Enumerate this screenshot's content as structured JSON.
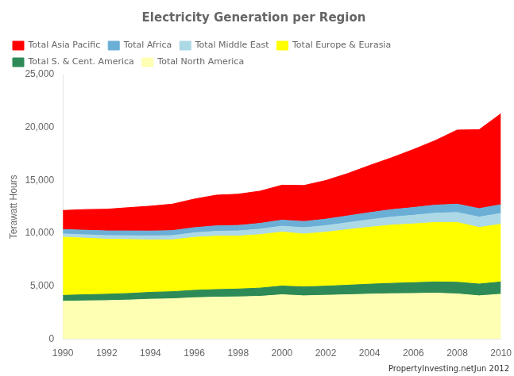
{
  "chart_data": {
    "type": "area",
    "title": "Electricity Generation per Region",
    "ylabel": "Terawatt Hours",
    "annotations": [
      "PropertyInvesting.netJun 2012"
    ],
    "x": [
      1990,
      1991,
      1992,
      1993,
      1994,
      1995,
      1996,
      1997,
      1998,
      1999,
      2000,
      2001,
      2002,
      2003,
      2004,
      2005,
      2006,
      2007,
      2008,
      2009,
      2010
    ],
    "xlim": [
      1990,
      2010
    ],
    "xticks": [
      1990,
      1992,
      1994,
      1996,
      1998,
      2000,
      2002,
      2004,
      2006,
      2008,
      2010
    ],
    "ylim": [
      0,
      25000
    ],
    "yticks": [
      0,
      {
        "value": 5000,
        "label": "5,000"
      },
      {
        "value": 10000,
        "label": "10,000"
      },
      {
        "value": 15000,
        "label": "15,000"
      },
      {
        "value": 20000,
        "label": "20,000"
      },
      {
        "value": 25000,
        "label": "25,000"
      }
    ],
    "stacked": true,
    "grid": false,
    "legend": "upper left",
    "series": [
      {
        "name": "Total North America",
        "color": "#ffffb3",
        "values": [
          3580,
          3620,
          3650,
          3700,
          3780,
          3820,
          3920,
          3970,
          4000,
          4050,
          4200,
          4100,
          4150,
          4200,
          4260,
          4300,
          4320,
          4350,
          4280,
          4100,
          4250
        ]
      },
      {
        "name": "Total S. & Cent. America",
        "color": "#2e8b57",
        "values": [
          560,
          580,
          600,
          620,
          650,
          670,
          700,
          720,
          740,
          780,
          820,
          840,
          860,
          900,
          940,
          980,
          1020,
          1060,
          1100,
          1110,
          1160
        ]
      },
      {
        "name": "Total Europe & Eurasia",
        "color": "#ffff00",
        "values": [
          5500,
          5350,
          5200,
          5100,
          4950,
          4900,
          5000,
          5050,
          5000,
          5050,
          5100,
          5000,
          5100,
          5250,
          5380,
          5500,
          5550,
          5620,
          5650,
          5350,
          5450
        ]
      },
      {
        "name": "Total Middle East",
        "color": "#add8e6",
        "values": [
          300,
          320,
          340,
          360,
          380,
          400,
          430,
          460,
          490,
          520,
          560,
          590,
          620,
          660,
          710,
          760,
          820,
          880,
          940,
          980,
          1020
        ]
      },
      {
        "name": "Total Africa",
        "color": "#6baed6",
        "values": [
          420,
          430,
          440,
          450,
          460,
          470,
          490,
          510,
          520,
          540,
          570,
          590,
          610,
          640,
          670,
          700,
          730,
          760,
          790,
          800,
          830
        ]
      },
      {
        "name": "Total Asia Pacific",
        "color": "#ff0000",
        "values": [
          1800,
          1950,
          2050,
          2200,
          2350,
          2500,
          2700,
          2900,
          2950,
          3050,
          3300,
          3400,
          3650,
          4000,
          4450,
          4900,
          5480,
          6100,
          7000,
          7450,
          8600
        ]
      }
    ]
  }
}
